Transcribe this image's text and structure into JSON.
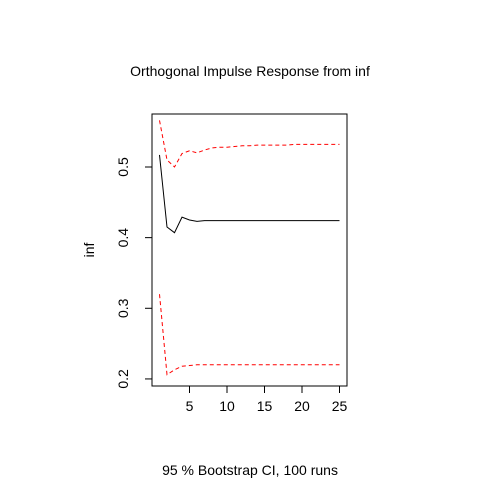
{
  "chart_data": {
    "type": "line",
    "title": "Orthogonal Impulse Response from inf",
    "xlabel": "95 % Bootstrap CI,  100 runs",
    "ylabel": "inf",
    "xlim": [
      0,
      26
    ],
    "ylim": [
      0.19,
      0.575
    ],
    "x_ticks": [
      5,
      10,
      15,
      20,
      25
    ],
    "y_ticks": [
      0.2,
      0.3,
      0.4,
      0.5
    ],
    "grid": false,
    "legend": "none",
    "x": [
      1,
      2,
      3,
      4,
      5,
      6,
      7,
      8,
      9,
      10,
      11,
      12,
      13,
      14,
      15,
      16,
      17,
      18,
      19,
      20,
      21,
      22,
      23,
      24,
      25
    ],
    "series": [
      {
        "role": "response",
        "color": "#000000",
        "dash": "solid",
        "values": [
          0.517,
          0.415,
          0.407,
          0.429,
          0.425,
          0.423,
          0.424,
          0.424,
          0.424,
          0.424,
          0.424,
          0.424,
          0.424,
          0.424,
          0.424,
          0.424,
          0.424,
          0.424,
          0.424,
          0.424,
          0.424,
          0.424,
          0.424,
          0.424,
          0.424
        ]
      },
      {
        "role": "upper-ci",
        "color": "#ff0000",
        "dash": "dashed",
        "values": [
          0.566,
          0.51,
          0.5,
          0.519,
          0.523,
          0.52,
          0.524,
          0.527,
          0.528,
          0.528,
          0.529,
          0.53,
          0.53,
          0.531,
          0.531,
          0.531,
          0.531,
          0.531,
          0.532,
          0.532,
          0.532,
          0.532,
          0.532,
          0.532,
          0.532
        ]
      },
      {
        "role": "lower-ci",
        "color": "#ff0000",
        "dash": "dashed",
        "values": [
          0.32,
          0.206,
          0.213,
          0.218,
          0.219,
          0.22,
          0.22,
          0.22,
          0.22,
          0.22,
          0.22,
          0.22,
          0.22,
          0.22,
          0.22,
          0.22,
          0.22,
          0.22,
          0.22,
          0.22,
          0.22,
          0.22,
          0.22,
          0.22,
          0.22
        ]
      }
    ]
  }
}
